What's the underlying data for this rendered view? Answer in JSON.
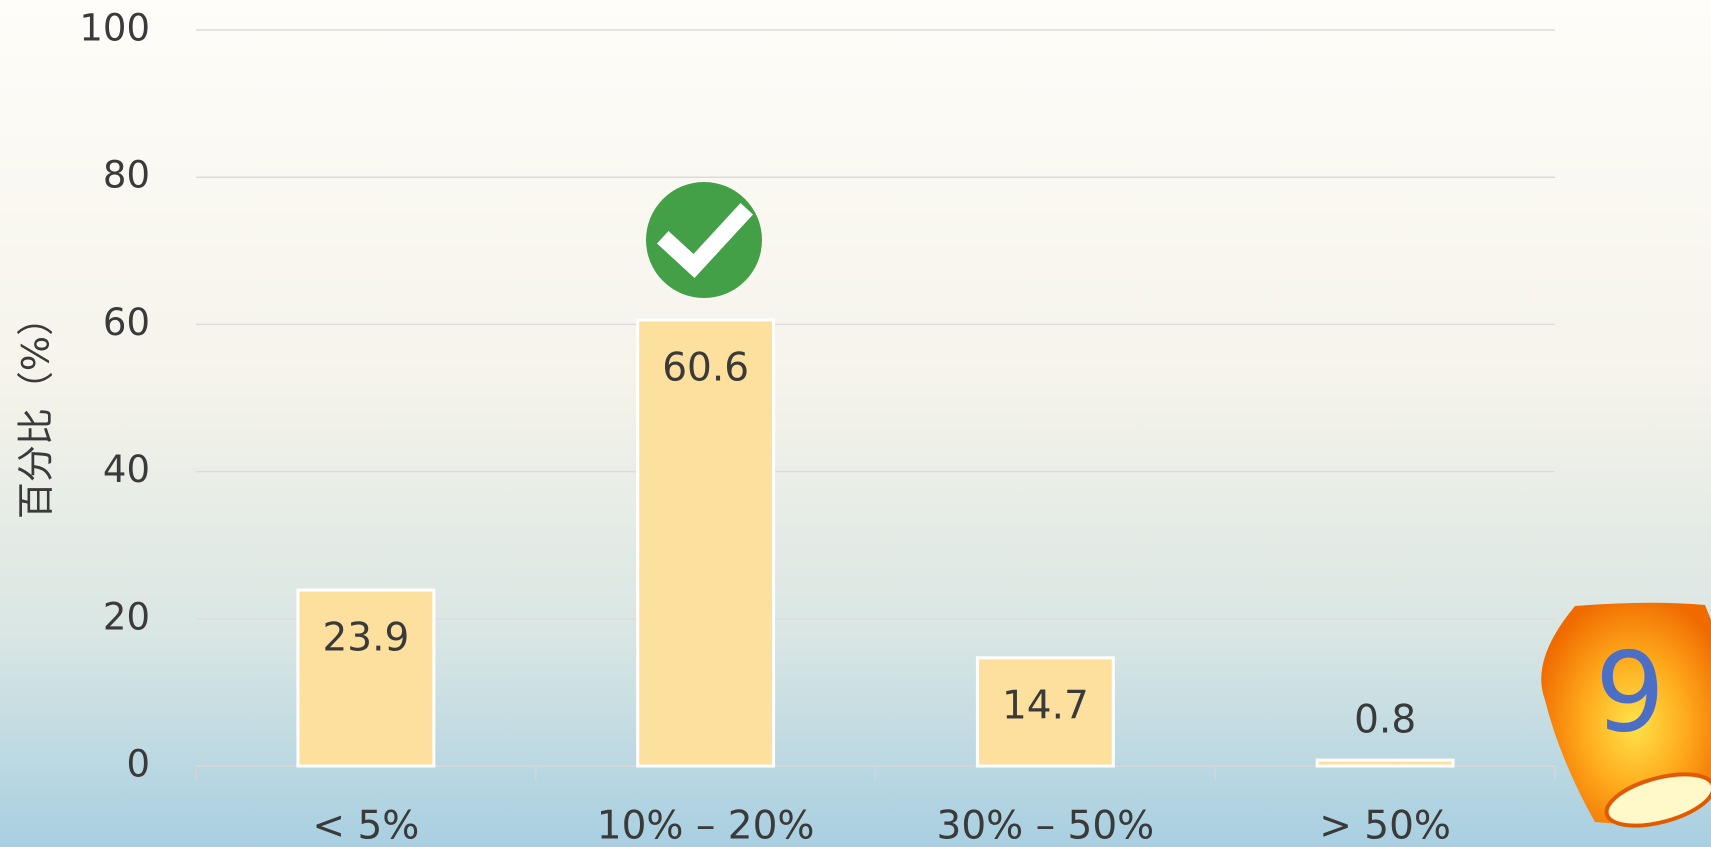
{
  "chart_data": {
    "type": "bar",
    "y_label": "百分比（%）",
    "categories": [
      "< 5%",
      "10% – 20%",
      "30% – 50%",
      "> 50%"
    ],
    "values": [
      23.9,
      60.6,
      14.7,
      0.8
    ],
    "color": "#fde09d",
    "ylim": [
      0,
      100
    ],
    "yticks": [
      0,
      20,
      40,
      60,
      80,
      100
    ],
    "grid": true
  },
  "lantern_number": "9"
}
